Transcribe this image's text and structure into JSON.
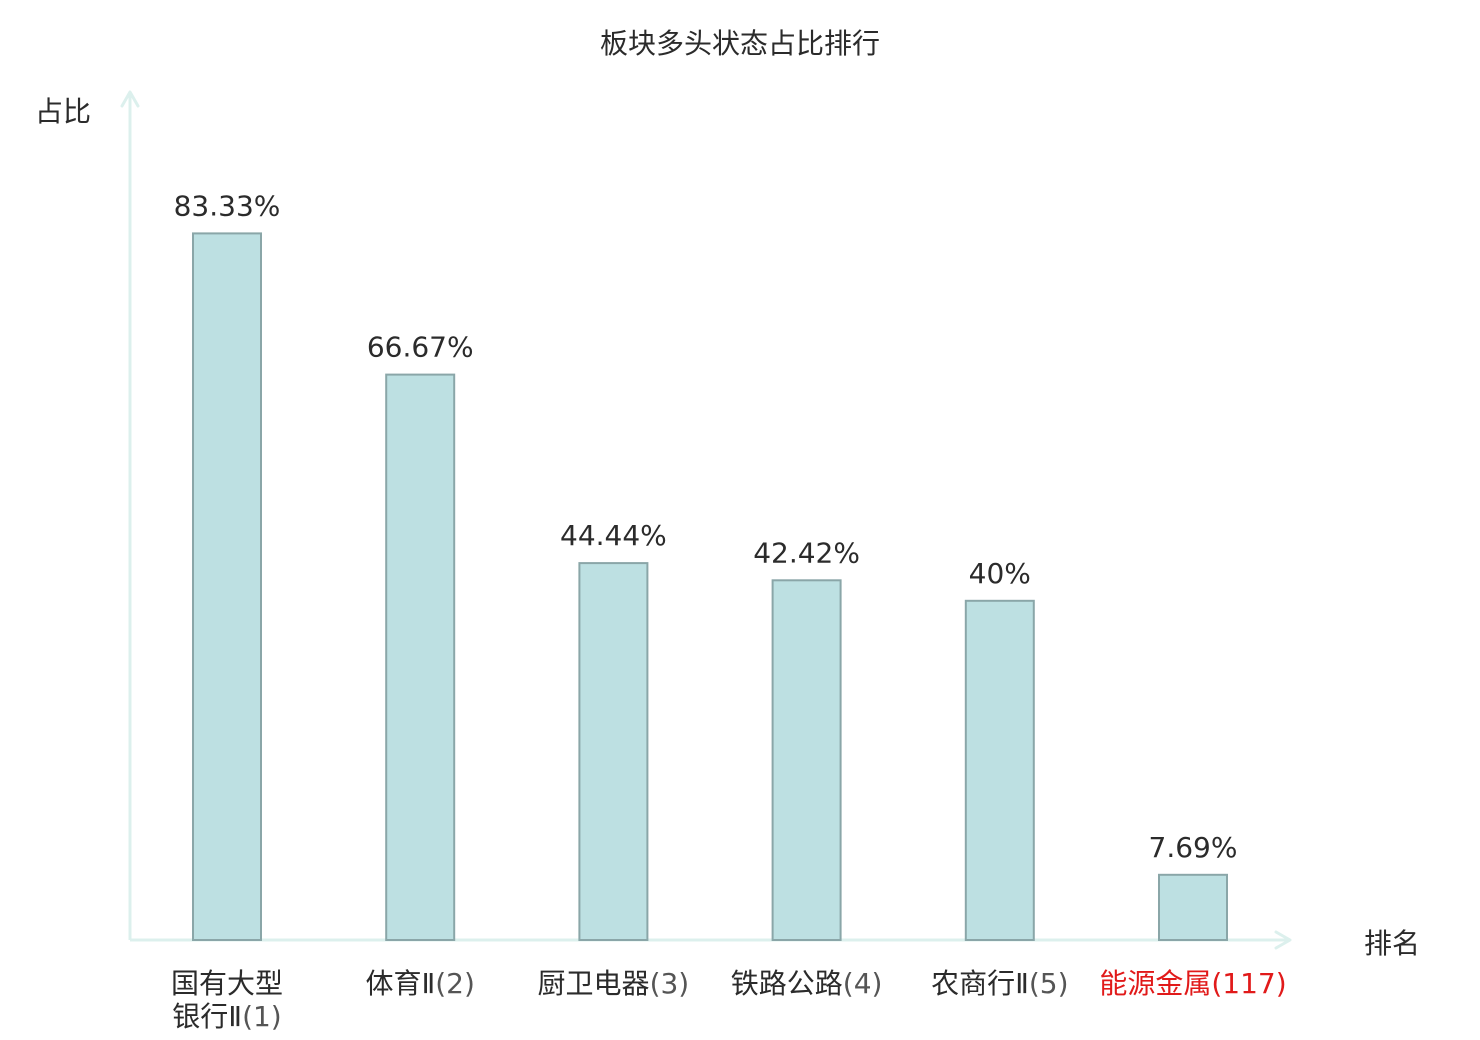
{
  "chart_data": {
    "type": "bar",
    "title": "板块多头状态占比排行",
    "ylabel": "占比",
    "xlabel": "排名",
    "ylim": [
      0,
      100
    ],
    "grid": false,
    "categories": [
      {
        "name_lines": [
          "国有大型",
          "银行Ⅱ"
        ],
        "rank": "(1)",
        "highlight": false
      },
      {
        "name_lines": [
          "体育Ⅱ"
        ],
        "rank": "(2)",
        "highlight": false
      },
      {
        "name_lines": [
          "厨卫电器"
        ],
        "rank": "(3)",
        "highlight": false
      },
      {
        "name_lines": [
          "铁路公路"
        ],
        "rank": "(4)",
        "highlight": false
      },
      {
        "name_lines": [
          "农商行Ⅱ"
        ],
        "rank": "(5)",
        "highlight": false
      },
      {
        "name_lines": [
          "能源金属"
        ],
        "rank": "(117)",
        "highlight": true
      }
    ],
    "values": [
      83.33,
      66.67,
      44.44,
      42.42,
      40,
      7.69
    ],
    "value_labels": [
      "83.33%",
      "66.67%",
      "44.44%",
      "42.42%",
      "40%",
      "7.69%"
    ]
  },
  "colors": {
    "bar_fill": "#bde0e2",
    "bar_stroke": "#8aa6a8",
    "axis": "#dcf0ed",
    "text": "#2b2b2b",
    "rank_text": "#555555",
    "highlight": "#e11a1a"
  }
}
